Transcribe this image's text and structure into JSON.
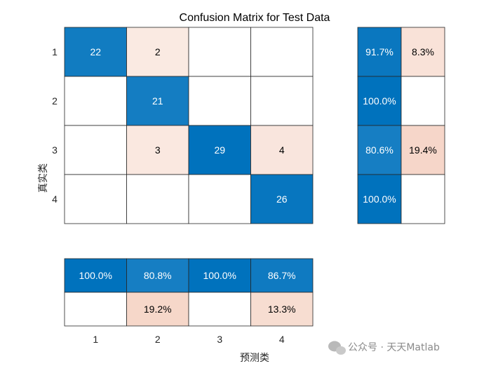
{
  "chart_data": {
    "type": "heatmap",
    "title": "Confusion Matrix for Test Data",
    "ylabel": "真实类",
    "xlabel": "预测类",
    "row_labels": [
      "1",
      "2",
      "3",
      "4"
    ],
    "col_labels": [
      "1",
      "2",
      "3",
      "4"
    ],
    "matrix": [
      [
        22,
        2,
        0,
        0
      ],
      [
        0,
        21,
        0,
        0
      ],
      [
        0,
        3,
        29,
        4
      ],
      [
        0,
        0,
        0,
        26
      ]
    ],
    "row_summary": [
      [
        "91.7%",
        "8.3%"
      ],
      [
        "100.0%",
        ""
      ],
      [
        "80.6%",
        "19.4%"
      ],
      [
        "100.0%",
        ""
      ]
    ],
    "col_summary": [
      [
        "100.0%",
        "80.8%",
        "100.0%",
        "86.7%"
      ],
      [
        "",
        "19.2%",
        "",
        "13.3%"
      ]
    ],
    "colors": {
      "blue": "#0072BD",
      "red": "#D95319",
      "border": "#262626"
    }
  },
  "watermark": {
    "text": "公众号 · 天天Matlab",
    "icon": "wechat-icon"
  }
}
